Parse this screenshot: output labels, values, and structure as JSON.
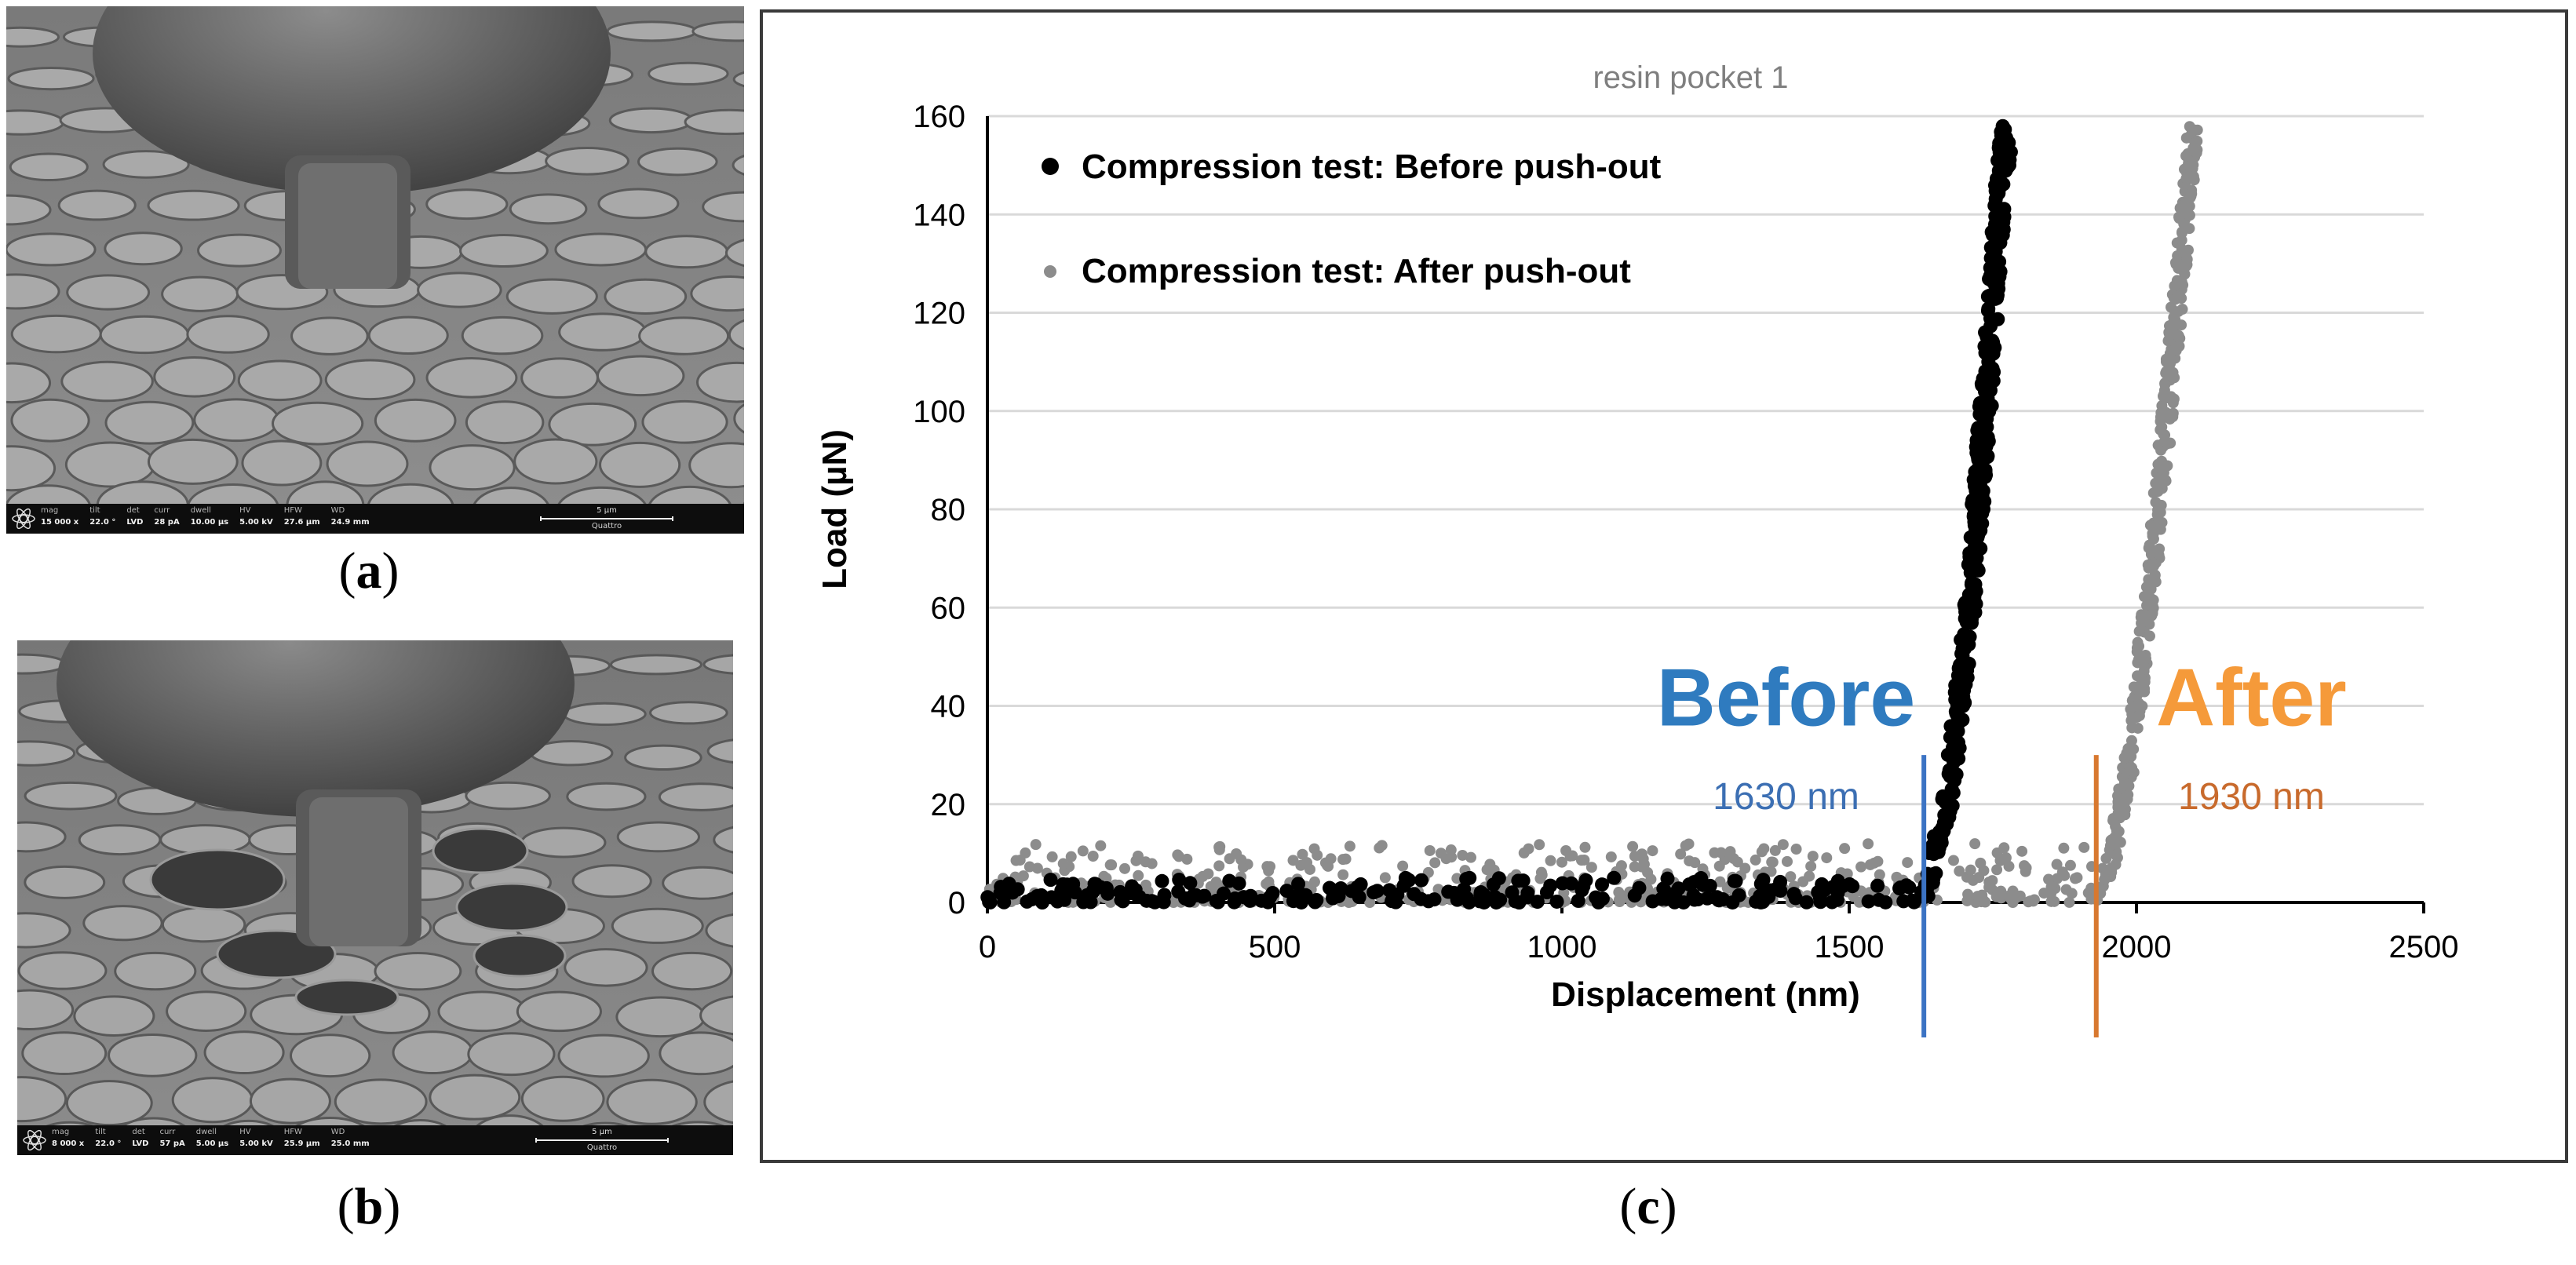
{
  "panels": {
    "a": {
      "label": "a",
      "sem_bar": {
        "fields": [
          {
            "key": "mag",
            "value": "15 000 x"
          },
          {
            "key": "tilt",
            "value": "22.0 °"
          },
          {
            "key": "det",
            "value": "LVD"
          },
          {
            "key": "curr",
            "value": "28 pA"
          },
          {
            "key": "dwell",
            "value": "10.00 µs"
          },
          {
            "key": "HV",
            "value": "5.00 kV"
          },
          {
            "key": "HFW",
            "value": "27.6 µm"
          },
          {
            "key": "WD",
            "value": "24.9 mm"
          }
        ],
        "scale_label": "5 µm",
        "brand": "Quattro"
      }
    },
    "b": {
      "label": "b",
      "sem_bar": {
        "fields": [
          {
            "key": "mag",
            "value": "8 000 x"
          },
          {
            "key": "tilt",
            "value": "22.0 °"
          },
          {
            "key": "det",
            "value": "LVD"
          },
          {
            "key": "curr",
            "value": "57 pA"
          },
          {
            "key": "dwell",
            "value": "5.00 µs"
          },
          {
            "key": "HV",
            "value": "5.00 kV"
          },
          {
            "key": "HFW",
            "value": "25.9 µm"
          },
          {
            "key": "WD",
            "value": "25.0 mm"
          }
        ],
        "scale_label": "5 µm",
        "brand": "Quattro"
      }
    },
    "c": {
      "label": "c"
    }
  },
  "chart_data": {
    "type": "scatter",
    "title": "resin pocket 1",
    "xlabel": "Displacement (nm)",
    "ylabel": "Load (µN)",
    "xlim": [
      0,
      2500
    ],
    "ylim": [
      0,
      160
    ],
    "xticks": [
      0,
      500,
      1000,
      1500,
      2000,
      2500
    ],
    "yticks": [
      0,
      20,
      40,
      60,
      80,
      100,
      120,
      140,
      160
    ],
    "grid": "horizontal",
    "legend_position": "top-left",
    "series": [
      {
        "name": "Compression test: Before push-out",
        "color": "#000000",
        "baseline": {
          "x_range": [
            0,
            1630
          ],
          "load_range": [
            0,
            5
          ]
        },
        "rise": [
          [
            1630,
            0
          ],
          [
            1650,
            10
          ],
          [
            1670,
            20
          ],
          [
            1690,
            40
          ],
          [
            1710,
            60
          ],
          [
            1730,
            90
          ],
          [
            1750,
            120
          ],
          [
            1760,
            140
          ],
          [
            1775,
            158
          ]
        ]
      },
      {
        "name": "Compression test: After push-out",
        "color": "#8c8c8c",
        "baseline": {
          "x_range": [
            0,
            1930
          ],
          "load_range": [
            0,
            12
          ]
        },
        "rise": [
          [
            1930,
            0
          ],
          [
            1960,
            10
          ],
          [
            1990,
            30
          ],
          [
            2010,
            50
          ],
          [
            2030,
            70
          ],
          [
            2050,
            95
          ],
          [
            2070,
            120
          ],
          [
            2085,
            140
          ],
          [
            2100,
            158
          ]
        ]
      }
    ],
    "annotations": [
      {
        "text": "Before",
        "color": "#2f7bbf",
        "x_data": 1390,
        "y_data": 36
      },
      {
        "text": "1630 nm",
        "color": "#3c6fb3",
        "x_data": 1390,
        "y_data": 19
      },
      {
        "text": "After",
        "color": "#f59a3a",
        "x_data": 2200,
        "y_data": 36
      },
      {
        "text": "1930 nm",
        "color": "#c86a2c",
        "x_data": 2200,
        "y_data": 19
      }
    ],
    "markers": [
      {
        "x": 1630,
        "color": "#3b73c4"
      },
      {
        "x": 1930,
        "color": "#d8782f"
      }
    ]
  }
}
